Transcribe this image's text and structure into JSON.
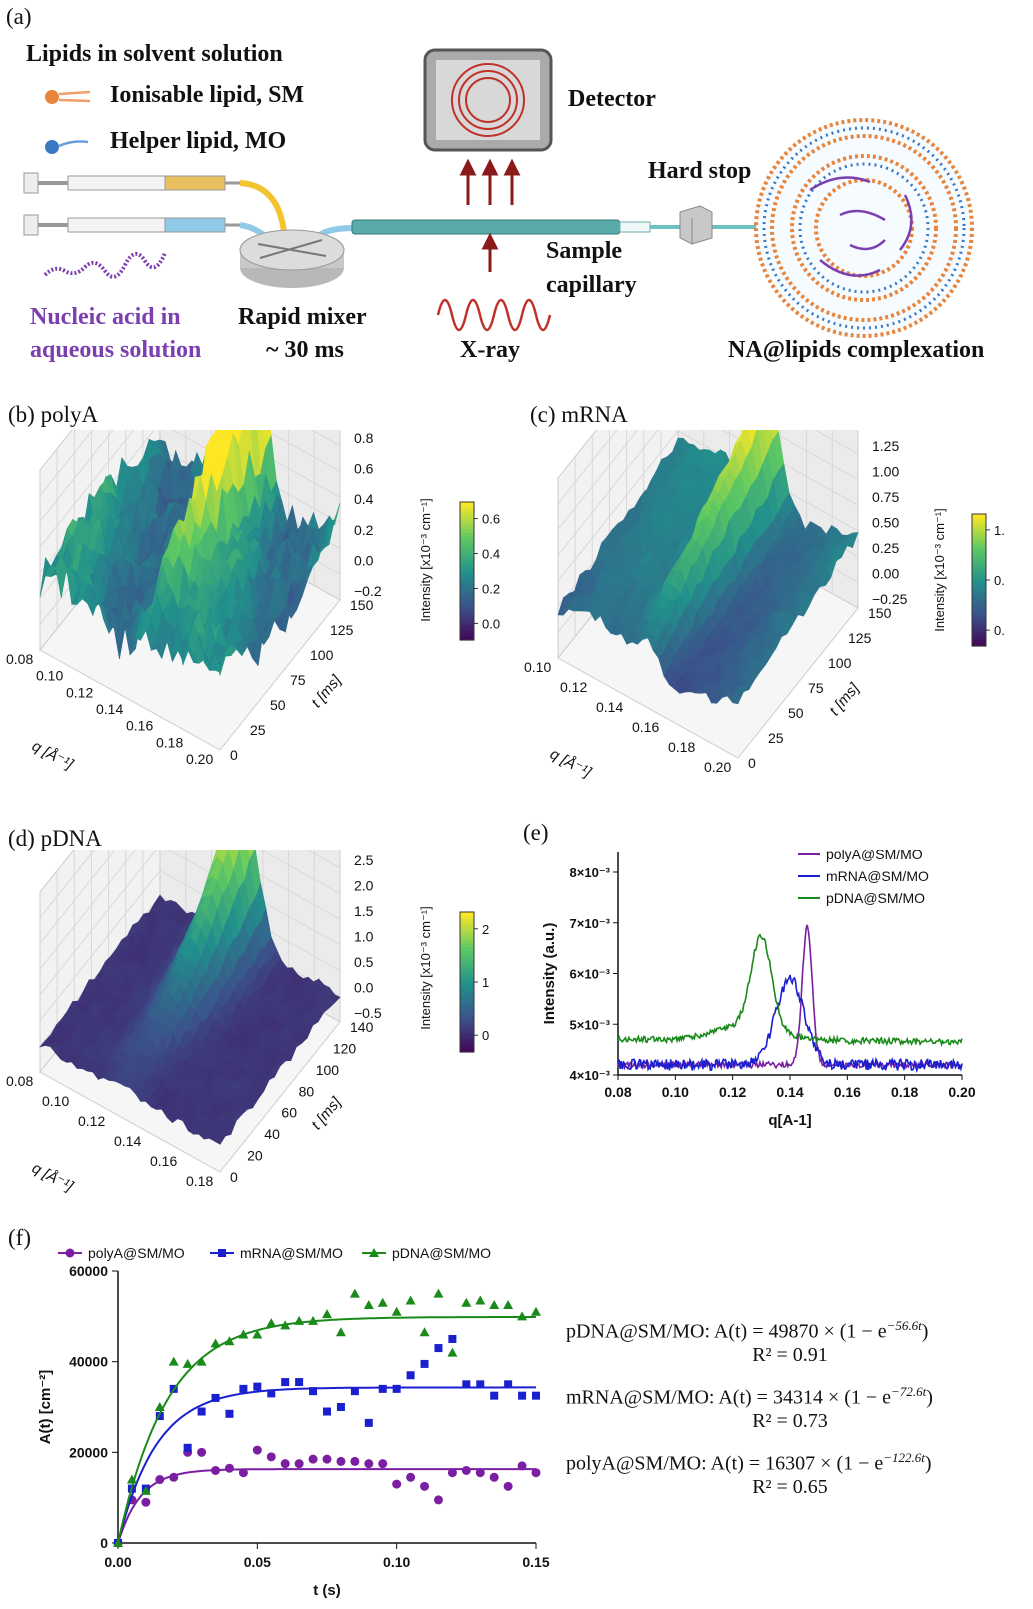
{
  "panel_a": {
    "label": "(a)",
    "lipids_title": "Lipids in solvent solution",
    "ionisable_lipid": "Ionisable lipid, SM",
    "helper_lipid": "Helper lipid, MO",
    "nucleic_acid_line1": "Nucleic acid in",
    "nucleic_acid_line2": "aqueous solution",
    "rapid_mixer_line1": "Rapid mixer",
    "rapid_mixer_line2": "~ 30 ms",
    "detector": "Detector",
    "hard_stop": "Hard stop",
    "sample_line1": "Sample",
    "sample_line2": "capillary",
    "xray": "X-ray",
    "complexation": "NA@lipids complexation",
    "colors": {
      "ionisable": "#e8843c",
      "helper": "#3a77c4",
      "nucleic": "#7b3fb0",
      "mixer": "#cfcfcf",
      "capillary": "#5aaaaa",
      "arrow": "#8b1a1a"
    }
  },
  "panel_b": {
    "label": "(b) polyA",
    "xlabel": "q [Å⁻¹]",
    "ylabel": "t [ms]",
    "zlabel": "Intensity [x10⁻³ cm⁻¹]",
    "q_ticks": [
      "0.08",
      "0.10",
      "0.12",
      "0.14",
      "0.16",
      "0.18",
      "0.20"
    ],
    "t_ticks": [
      "0",
      "25",
      "50",
      "75",
      "100",
      "125",
      "150"
    ],
    "z_ticks": [
      "0.8",
      "0.6",
      "0.4",
      "0.2",
      "0.0",
      "−0.2"
    ],
    "cbar_ticks": [
      "0.6",
      "0.4",
      "0.2",
      "0.0"
    ]
  },
  "panel_c": {
    "label": "(c) mRNA",
    "xlabel": "q [Å⁻¹]",
    "ylabel": "t [ms]",
    "zlabel": "Intensity [x10⁻³ cm⁻¹]",
    "q_ticks": [
      "0.10",
      "0.12",
      "0.14",
      "0.16",
      "0.18",
      "0.20"
    ],
    "t_ticks": [
      "0",
      "25",
      "50",
      "75",
      "100",
      "125",
      "150"
    ],
    "z_ticks": [
      "1.25",
      "1.00",
      "0.75",
      "0.50",
      "0.25",
      "0.00",
      "−0.25"
    ],
    "cbar_ticks": [
      "1.",
      "0.",
      "0."
    ]
  },
  "panel_d": {
    "label": "(d) pDNA",
    "xlabel": "q [Å⁻¹]",
    "ylabel": "t [ms]",
    "zlabel": "Intensity [x10⁻³ cm⁻¹]",
    "q_ticks": [
      "0.08",
      "0.10",
      "0.12",
      "0.14",
      "0.16",
      "0.18"
    ],
    "t_ticks": [
      "0",
      "20",
      "40",
      "60",
      "80",
      "100",
      "120",
      "140"
    ],
    "z_ticks": [
      "2.5",
      "2.0",
      "1.5",
      "1.0",
      "0.5",
      "0.0",
      "−0.5"
    ],
    "cbar_ticks": [
      "2",
      "1",
      "0"
    ]
  },
  "panel_e": {
    "label": "(e)"
  },
  "panel_f": {
    "label": "(f)",
    "eq_pdna": "pDNA@SM/MO: A(t) = 49870 × (1 − e",
    "exp_pdna": "−56.6t",
    "r2_pdna": "R² = 0.91",
    "eq_mrna": "mRNA@SM/MO: A(t) = 34314 × (1 − e",
    "exp_mrna": "−72.6t",
    "r2_mrna": "R² = 0.73",
    "eq_polya": "polyA@SM/MO: A(t) = 16307 × (1 − e",
    "exp_polya": "−122.6t",
    "r2_polya": "R² = 0.65"
  },
  "chart_data": [
    {
      "type": "line",
      "panel": "e",
      "xlabel": "q[A-1]",
      "ylabel": "Intensity (a.u.)",
      "xlim": [
        0.08,
        0.2
      ],
      "ylim": [
        0.004,
        0.008
      ],
      "x_ticks": [
        "0.08",
        "0.10",
        "0.12",
        "0.14",
        "0.16",
        "0.18",
        "0.20"
      ],
      "y_ticks": [
        "4×10⁻³",
        "5×10⁻³",
        "6×10⁻³",
        "7×10⁻³",
        "8×10⁻³"
      ],
      "legend_position": "top-right",
      "series": [
        {
          "name": "polyA@SM/MO",
          "color": "#7a1fa2",
          "peak_q": 0.146,
          "peak": 0.0069,
          "baseline": 0.0042
        },
        {
          "name": "mRNA@SM/MO",
          "color": "#1a1fcf",
          "peak_q": 0.14,
          "peak": 0.0059,
          "baseline": 0.0042
        },
        {
          "name": "pDNA@SM/MO",
          "color": "#1a8a1a",
          "peak_q": 0.13,
          "peak": 0.0065,
          "baseline": 0.0047
        }
      ]
    },
    {
      "type": "scatter",
      "panel": "f",
      "xlabel": "t (s)",
      "ylabel": "A(t) [cm⁻²]",
      "xlim": [
        0,
        0.15
      ],
      "ylim": [
        0,
        60000
      ],
      "x_ticks": [
        "0.00",
        "0.05",
        "0.10",
        "0.15"
      ],
      "y_ticks": [
        "0",
        "20000",
        "40000",
        "60000"
      ],
      "legend_position": "top",
      "series": [
        {
          "name": "polyA@SM/MO",
          "color": "#7a1fa2",
          "marker": "circle",
          "fit": {
            "A": 16307,
            "k": 122.6
          },
          "x": [
            0,
            0.005,
            0.01,
            0.015,
            0.02,
            0.025,
            0.03,
            0.035,
            0.04,
            0.045,
            0.05,
            0.055,
            0.06,
            0.065,
            0.07,
            0.075,
            0.08,
            0.085,
            0.09,
            0.095,
            0.1,
            0.105,
            0.11,
            0.115,
            0.12,
            0.125,
            0.13,
            0.135,
            0.14,
            0.145,
            0.15
          ],
          "y": [
            0,
            9500,
            9000,
            14000,
            14500,
            20000,
            20000,
            16000,
            16500,
            15500,
            20500,
            19000,
            17500,
            17500,
            18500,
            18500,
            18000,
            18000,
            17500,
            17500,
            13000,
            14500,
            12500,
            9500,
            15500,
            16000,
            15500,
            14500,
            12500,
            17000,
            15500
          ]
        },
        {
          "name": "mRNA@SM/MO",
          "color": "#1a1fcf",
          "marker": "square",
          "fit": {
            "A": 34314,
            "k": 72.6
          },
          "x": [
            0,
            0.005,
            0.01,
            0.015,
            0.02,
            0.025,
            0.03,
            0.035,
            0.04,
            0.045,
            0.05,
            0.055,
            0.06,
            0.065,
            0.07,
            0.075,
            0.08,
            0.085,
            0.09,
            0.095,
            0.1,
            0.105,
            0.11,
            0.115,
            0.12,
            0.125,
            0.13,
            0.135,
            0.14,
            0.145,
            0.15
          ],
          "y": [
            0,
            12000,
            12000,
            28000,
            34000,
            21000,
            29000,
            32000,
            28500,
            34000,
            34500,
            33000,
            35500,
            35500,
            33500,
            29000,
            30000,
            33500,
            26500,
            34000,
            34000,
            37000,
            39500,
            43000,
            45000,
            35000,
            35000,
            32500,
            35000,
            32500,
            32500
          ]
        },
        {
          "name": "pDNA@SM/MO",
          "color": "#1a8a1a",
          "marker": "triangle",
          "fit": {
            "A": 49870,
            "k": 56.6
          },
          "x": [
            0,
            0.005,
            0.01,
            0.015,
            0.02,
            0.025,
            0.03,
            0.035,
            0.04,
            0.045,
            0.05,
            0.055,
            0.06,
            0.065,
            0.07,
            0.075,
            0.08,
            0.085,
            0.09,
            0.095,
            0.1,
            0.105,
            0.11,
            0.115,
            0.12,
            0.125,
            0.13,
            0.135,
            0.14,
            0.145,
            0.15
          ],
          "y": [
            0,
            14000,
            11500,
            30000,
            40000,
            39500,
            40000,
            44000,
            44500,
            46000,
            46000,
            48500,
            48000,
            49000,
            49000,
            50500,
            46500,
            55000,
            52500,
            53000,
            51000,
            53500,
            46500,
            55000,
            42000,
            53000,
            53500,
            52500,
            52500,
            50000,
            51000
          ]
        }
      ]
    }
  ]
}
